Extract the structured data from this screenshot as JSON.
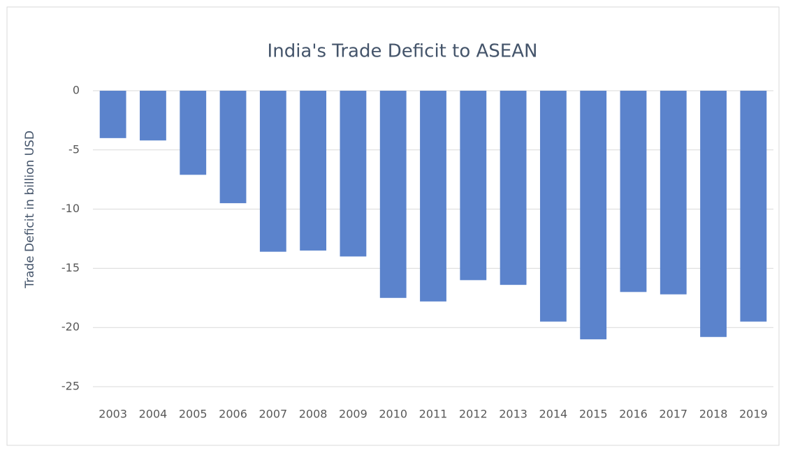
{
  "chart_data": {
    "type": "bar",
    "title": "India's Trade Deficit to ASEAN",
    "y_label": "Trade Deficit in billion USD",
    "categories": [
      "2003",
      "2004",
      "2005",
      "2006",
      "2007",
      "2008",
      "2009",
      "2010",
      "2011",
      "2012",
      "2013",
      "2014",
      "2015",
      "2016",
      "2017",
      "2018",
      "2019"
    ],
    "values": [
      -4.0,
      -4.2,
      -7.1,
      -9.5,
      -13.6,
      -13.5,
      -14.0,
      -17.5,
      -17.8,
      -16.0,
      -16.4,
      -19.5,
      -21.0,
      -17.0,
      -17.2,
      -20.8,
      -19.5
    ],
    "color": "#5b83cc",
    "ylim": [
      -25,
      0
    ],
    "yticks": [
      0,
      -5,
      -10,
      -15,
      -20,
      -25
    ],
    "grid": true
  }
}
